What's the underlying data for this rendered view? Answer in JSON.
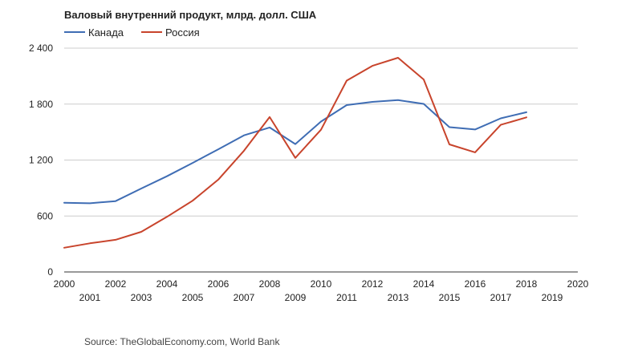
{
  "chart_data": {
    "type": "line",
    "title": "Валовый внутренний продукт, млрд. долл. США",
    "xlabel": "",
    "ylabel": "",
    "x": [
      2000,
      2001,
      2002,
      2003,
      2004,
      2005,
      2006,
      2007,
      2008,
      2009,
      2010,
      2011,
      2012,
      2013,
      2014,
      2015,
      2016,
      2017,
      2018
    ],
    "x_ticks": [
      "2000",
      "2001",
      "2002",
      "2003",
      "2004",
      "2005",
      "2006",
      "2007",
      "2008",
      "2009",
      "2010",
      "2011",
      "2012",
      "2013",
      "2014",
      "2015",
      "2016",
      "2017",
      "2018",
      "2019",
      "2020"
    ],
    "xlim": [
      2000,
      2020
    ],
    "y_ticks": [
      {
        "value": 0,
        "label": "0"
      },
      {
        "value": 600,
        "label": "600"
      },
      {
        "value": 1200,
        "label": "1 200"
      },
      {
        "value": 1800,
        "label": "1 800"
      },
      {
        "value": 2400,
        "label": "2 400"
      }
    ],
    "ylim": [
      0,
      2400
    ],
    "grid": true,
    "legend_position": "top-left",
    "series": [
      {
        "name": "Канада",
        "color": "#3f6db4",
        "values": [
          742,
          736,
          760,
          895,
          1026,
          1169,
          1315,
          1465,
          1549,
          1371,
          1613,
          1789,
          1824,
          1843,
          1802,
          1553,
          1528,
          1647,
          1713
        ]
      },
      {
        "name": "Россия",
        "color": "#c8442c",
        "values": [
          260,
          307,
          345,
          430,
          591,
          764,
          990,
          1300,
          1661,
          1223,
          1525,
          2052,
          2210,
          2297,
          2064,
          1368,
          1283,
          1578,
          1658
        ]
      }
    ]
  },
  "footer": {
    "source": "Source: TheGlobalEconomy.com, World Bank"
  }
}
